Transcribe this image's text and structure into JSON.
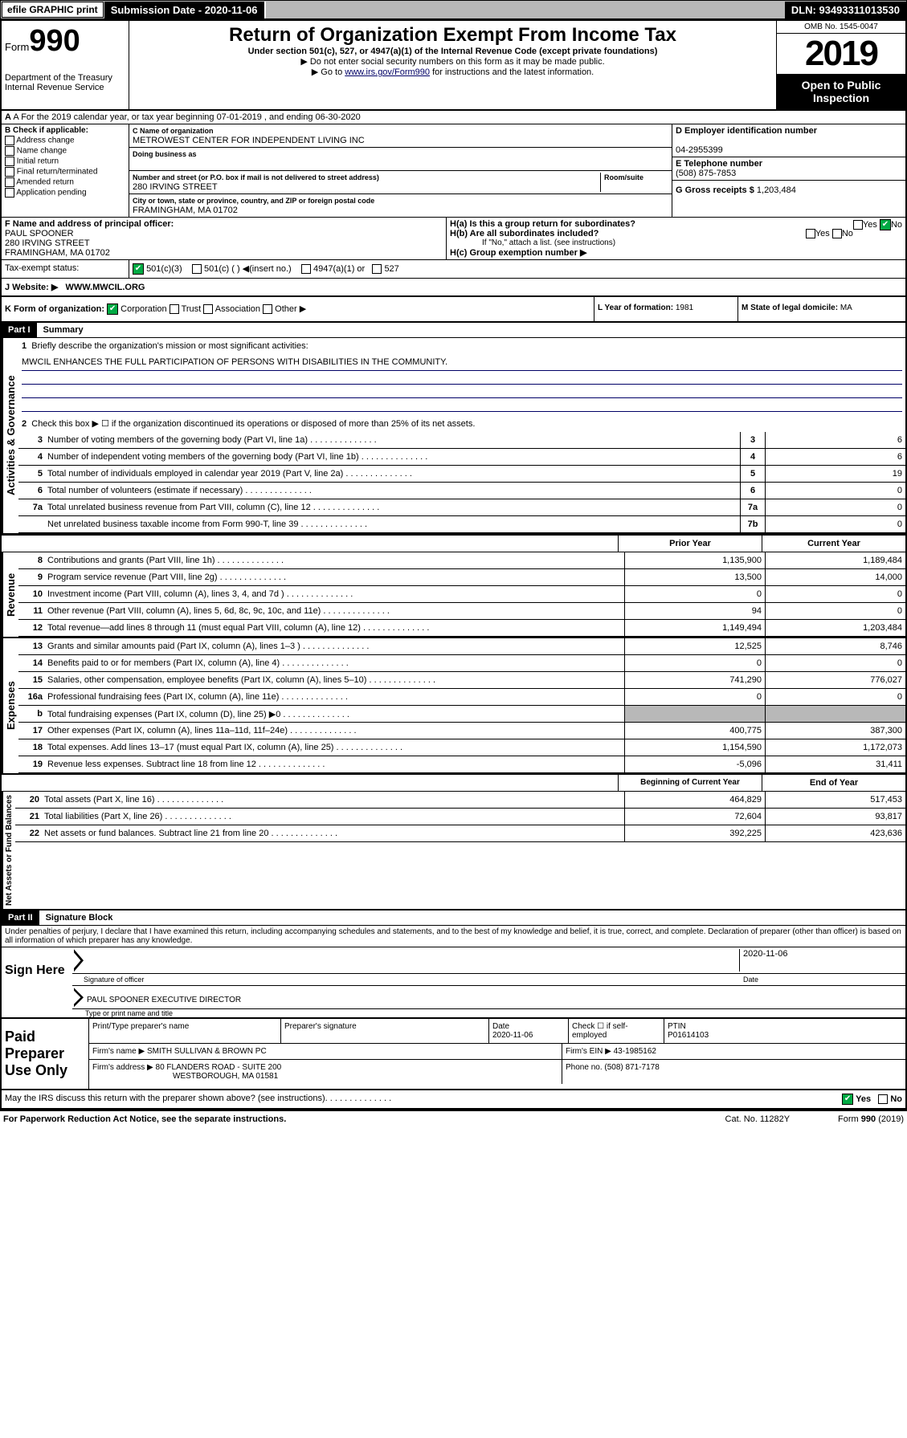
{
  "topbar": {
    "efile": "efile GRAPHIC print",
    "subdate_label": "Submission Date - 2020-11-06",
    "dln": "DLN: 93493311013530"
  },
  "header": {
    "form_prefix": "Form",
    "form_num": "990",
    "title": "Return of Organization Exempt From Income Tax",
    "subtitle": "Under section 501(c), 527, or 4947(a)(1) of the Internal Revenue Code (except private foundations)",
    "note1": "▶ Do not enter social security numbers on this form as it may be made public.",
    "note2_pre": "▶ Go to ",
    "note2_link": "www.irs.gov/Form990",
    "note2_post": " for instructions and the latest information.",
    "dept": "Department of the Treasury",
    "irs": "Internal Revenue Service",
    "omb": "OMB No. 1545-0047",
    "year": "2019",
    "open": "Open to Public Inspection"
  },
  "sectionA": {
    "text": "A For the 2019 calendar year, or tax year beginning 07-01-2019   , and ending 06-30-2020"
  },
  "sectionB": {
    "label": "B Check if applicable:",
    "opts": [
      "Address change",
      "Name change",
      "Initial return",
      "Final return/terminated",
      "Amended return",
      "Application pending"
    ]
  },
  "sectionC": {
    "name_label": "C Name of organization",
    "name": "METROWEST CENTER FOR INDEPENDENT LIVING INC",
    "dba_label": "Doing business as",
    "dba": "",
    "addr_label": "Number and street (or P.O. box if mail is not delivered to street address)",
    "room": "Room/suite",
    "addr": "280 IRVING STREET",
    "city_label": "City or town, state or province, country, and ZIP or foreign postal code",
    "city": "FRAMINGHAM, MA  01702"
  },
  "sectionD": {
    "label": "D Employer identification number",
    "ein": "04-2955399"
  },
  "sectionE": {
    "label": "E Telephone number",
    "phone": "(508) 875-7853"
  },
  "sectionG": {
    "label": "G Gross receipts $",
    "amount": "1,203,484"
  },
  "sectionF": {
    "label": "F  Name and address of principal officer:",
    "name": "PAUL SPOONER",
    "addr": "280 IRVING STREET",
    "city": "FRAMINGHAM, MA  01702"
  },
  "sectionH": {
    "a": "H(a)  Is this a group return for subordinates?",
    "a_yes": "Yes",
    "a_no": "No",
    "b": "H(b)  Are all subordinates included?",
    "b_note": "If \"No,\" attach a list. (see instructions)",
    "c": "H(c)  Group exemption number ▶"
  },
  "sectionI": {
    "label": "Tax-exempt status:",
    "opt1": "501(c)(3)",
    "opt2": "501(c) (  ) ◀(insert no.)",
    "opt3": "4947(a)(1) or",
    "opt4": "527"
  },
  "sectionJ": {
    "label": "J   Website: ▶",
    "url": "WWW.MWCIL.ORG"
  },
  "sectionK": {
    "label": "K Form of organization:",
    "opts": [
      "Corporation",
      "Trust",
      "Association",
      "Other ▶"
    ]
  },
  "sectionL": {
    "label": "L Year of formation:",
    "val": "1981"
  },
  "sectionM": {
    "label": "M State of legal domicile:",
    "val": "MA"
  },
  "part1": {
    "hdr": "Part I",
    "title": "Summary"
  },
  "summary": {
    "line1": "Briefly describe the organization's mission or most significant activities:",
    "mission": "MWCIL ENHANCES THE FULL PARTICIPATION OF PERSONS WITH DISABILITIES IN THE COMMUNITY.",
    "line2": "Check this box ▶ ☐  if the organization discontinued its operations or disposed of more than 25% of its net assets.",
    "rows": [
      {
        "n": "3",
        "t": "Number of voting members of the governing body (Part VI, line 1a)",
        "box": "3",
        "v": "6"
      },
      {
        "n": "4",
        "t": "Number of independent voting members of the governing body (Part VI, line 1b)",
        "box": "4",
        "v": "6"
      },
      {
        "n": "5",
        "t": "Total number of individuals employed in calendar year 2019 (Part V, line 2a)",
        "box": "5",
        "v": "19"
      },
      {
        "n": "6",
        "t": "Total number of volunteers (estimate if necessary)",
        "box": "6",
        "v": "0"
      },
      {
        "n": "7a",
        "t": "Total unrelated business revenue from Part VIII, column (C), line 12",
        "box": "7a",
        "v": "0"
      },
      {
        "n": "",
        "t": "Net unrelated business taxable income from Form 990-T, line 39",
        "box": "7b",
        "v": "0"
      }
    ],
    "col_prior": "Prior Year",
    "col_current": "Current Year",
    "revenue": [
      {
        "n": "8",
        "t": "Contributions and grants (Part VIII, line 1h)",
        "p": "1,135,900",
        "c": "1,189,484"
      },
      {
        "n": "9",
        "t": "Program service revenue (Part VIII, line 2g)",
        "p": "13,500",
        "c": "14,000"
      },
      {
        "n": "10",
        "t": "Investment income (Part VIII, column (A), lines 3, 4, and 7d )",
        "p": "0",
        "c": "0"
      },
      {
        "n": "11",
        "t": "Other revenue (Part VIII, column (A), lines 5, 6d, 8c, 9c, 10c, and 11e)",
        "p": "94",
        "c": "0"
      },
      {
        "n": "12",
        "t": "Total revenue—add lines 8 through 11 (must equal Part VIII, column (A), line 12)",
        "p": "1,149,494",
        "c": "1,203,484"
      }
    ],
    "expenses": [
      {
        "n": "13",
        "t": "Grants and similar amounts paid (Part IX, column (A), lines 1–3 )",
        "p": "12,525",
        "c": "8,746"
      },
      {
        "n": "14",
        "t": "Benefits paid to or for members (Part IX, column (A), line 4)",
        "p": "0",
        "c": "0"
      },
      {
        "n": "15",
        "t": "Salaries, other compensation, employee benefits (Part IX, column (A), lines 5–10)",
        "p": "741,290",
        "c": "776,027"
      },
      {
        "n": "16a",
        "t": "Professional fundraising fees (Part IX, column (A), line 11e)",
        "p": "0",
        "c": "0"
      },
      {
        "n": "b",
        "t": "Total fundraising expenses (Part IX, column (D), line 25) ▶0",
        "p": "",
        "c": "",
        "gray": true
      },
      {
        "n": "17",
        "t": "Other expenses (Part IX, column (A), lines 11a–11d, 11f–24e)",
        "p": "400,775",
        "c": "387,300"
      },
      {
        "n": "18",
        "t": "Total expenses. Add lines 13–17 (must equal Part IX, column (A), line 25)",
        "p": "1,154,590",
        "c": "1,172,073"
      },
      {
        "n": "19",
        "t": "Revenue less expenses. Subtract line 18 from line 12",
        "p": "-5,096",
        "c": "31,411"
      }
    ],
    "col_begin": "Beginning of Current Year",
    "col_end": "End of Year",
    "netassets": [
      {
        "n": "20",
        "t": "Total assets (Part X, line 16)",
        "p": "464,829",
        "c": "517,453"
      },
      {
        "n": "21",
        "t": "Total liabilities (Part X, line 26)",
        "p": "72,604",
        "c": "93,817"
      },
      {
        "n": "22",
        "t": "Net assets or fund balances. Subtract line 21 from line 20",
        "p": "392,225",
        "c": "423,636"
      }
    ]
  },
  "side": {
    "gov": "Activities & Governance",
    "rev": "Revenue",
    "exp": "Expenses",
    "net": "Net Assets or Fund Balances"
  },
  "part2": {
    "hdr": "Part II",
    "title": "Signature Block"
  },
  "perjury": "Under penalties of perjury, I declare that I have examined this return, including accompanying schedules and statements, and to the best of my knowledge and belief, it is true, correct, and complete. Declaration of preparer (other than officer) is based on all information of which preparer has any knowledge.",
  "sign": {
    "here": "Sign Here",
    "sig_officer": "Signature of officer",
    "date": "2020-11-06",
    "date_label": "Date",
    "name": "PAUL SPOONER  EXECUTIVE DIRECTOR",
    "name_label": "Type or print name and title"
  },
  "paid": {
    "label": "Paid Preparer Use Only",
    "h1": "Print/Type preparer's name",
    "h2": "Preparer's signature",
    "h3": "Date",
    "h4": "Check ☐ if self-employed",
    "h5": "PTIN",
    "prep_date": "2020-11-06",
    "ptin": "P01614103",
    "firm_label": "Firm's name    ▶",
    "firm": "SMITH SULLIVAN & BROWN PC",
    "ein_label": "Firm's EIN ▶",
    "ein": "43-1985162",
    "addr_label": "Firm's address ▶",
    "addr": "80 FLANDERS ROAD - SUITE 200",
    "addr2": "WESTBOROUGH, MA  01581",
    "phone_label": "Phone no.",
    "phone": "(508) 871-7178"
  },
  "discuss": "May the IRS discuss this return with the preparer shown above? (see instructions)",
  "discuss_yes": "Yes",
  "discuss_no": "No",
  "footer": {
    "pra": "For Paperwork Reduction Act Notice, see the separate instructions.",
    "cat": "Cat. No. 11282Y",
    "form": "Form 990 (2019)"
  }
}
